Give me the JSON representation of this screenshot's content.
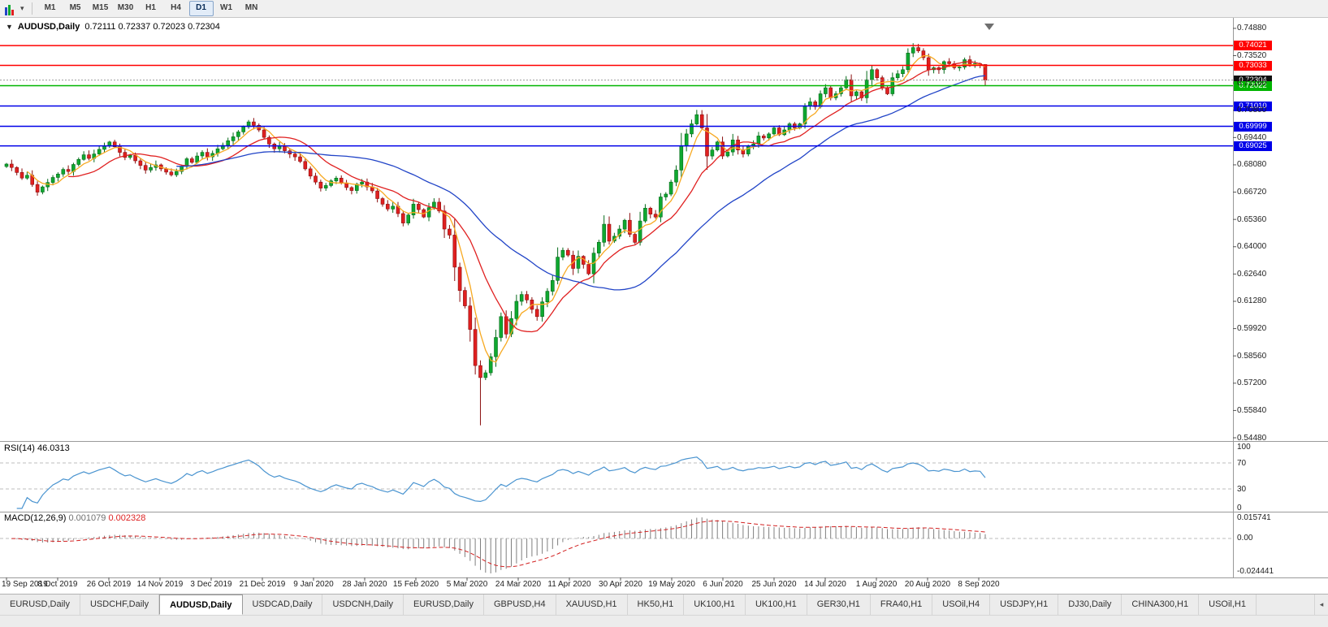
{
  "window": {
    "title_symbol": "AUDUSD,Daily",
    "title_ohlc": "0.72111 0.72337 0.72023 0.72304"
  },
  "toolbar": {
    "timeframes": [
      {
        "label": "M1",
        "active": false
      },
      {
        "label": "M5",
        "active": false
      },
      {
        "label": "M15",
        "active": false
      },
      {
        "label": "M30",
        "active": false
      },
      {
        "label": "H1",
        "active": false
      },
      {
        "label": "H4",
        "active": false
      },
      {
        "label": "D1",
        "active": true
      },
      {
        "label": "W1",
        "active": false
      },
      {
        "label": "MN",
        "active": false
      }
    ]
  },
  "chart_data": {
    "type": "candlestick",
    "symbol": "AUDUSD",
    "period": "Daily",
    "ohlc_display": {
      "open": "0.72111",
      "high": "0.72337",
      "low": "0.72023",
      "close": "0.72304"
    },
    "price_plot_range": [
      0.544,
      0.7516
    ],
    "y_axis_labels": [
      "0.74880",
      "0.73520",
      "0.72160",
      "0.70800",
      "0.69440",
      "0.68080",
      "0.66720",
      "0.65360",
      "0.64000",
      "0.62640",
      "0.61280",
      "0.59920",
      "0.58560",
      "0.57200",
      "0.55840",
      "0.54480"
    ],
    "x_ticks": [
      "19 Sep 2019",
      "8 Oct 2019",
      "26 Oct 2019",
      "14 Nov 2019",
      "3 Dec 2019",
      "21 Dec 2019",
      "9 Jan 2020",
      "28 Jan 2020",
      "15 Feb 2020",
      "5 Mar 2020",
      "24 Mar 2020",
      "11 Apr 2020",
      "30 Apr 2020",
      "19 May 2020",
      "6 Jun 2020",
      "25 Jun 2020",
      "14 Jul 2020",
      "1 Aug 2020",
      "20 Aug 2020",
      "8 Sep 2020"
    ],
    "closes": [
      0.6812,
      0.6795,
      0.677,
      0.6742,
      0.6756,
      0.671,
      0.6672,
      0.6698,
      0.672,
      0.6745,
      0.6762,
      0.6785,
      0.6775,
      0.681,
      0.6835,
      0.6858,
      0.684,
      0.6862,
      0.6885,
      0.6902,
      0.6922,
      0.6898,
      0.687,
      0.6845,
      0.6855,
      0.6828,
      0.6805,
      0.6782,
      0.6795,
      0.6808,
      0.6788,
      0.6772,
      0.6758,
      0.6775,
      0.68,
      0.6838,
      0.682,
      0.6852,
      0.687,
      0.6848,
      0.6865,
      0.6888,
      0.6905,
      0.6928,
      0.6948,
      0.6972,
      0.6998,
      0.7022,
      0.7005,
      0.6982,
      0.6945,
      0.6912,
      0.6888,
      0.6902,
      0.6878,
      0.6862,
      0.6848,
      0.6825,
      0.6788,
      0.6752,
      0.6722,
      0.6692,
      0.6705,
      0.6728,
      0.6742,
      0.6718,
      0.6695,
      0.668,
      0.6712,
      0.6722,
      0.6698,
      0.6678,
      0.664,
      0.6612,
      0.6588,
      0.6602,
      0.6565,
      0.6518,
      0.6558,
      0.6612,
      0.6585,
      0.6548,
      0.6595,
      0.6622,
      0.6578,
      0.6488,
      0.6458,
      0.6298,
      0.6182,
      0.6105,
      0.5988,
      0.5808,
      0.5748,
      0.5772,
      0.5852,
      0.5948,
      0.6052,
      0.5965,
      0.6042,
      0.6128,
      0.6162,
      0.6135,
      0.6088,
      0.6052,
      0.6125,
      0.6178,
      0.6232,
      0.6348,
      0.6382,
      0.6358,
      0.6292,
      0.6352,
      0.6312,
      0.6265,
      0.6368,
      0.6422,
      0.6512,
      0.6428,
      0.6452,
      0.6488,
      0.6532,
      0.6462,
      0.6422,
      0.6528,
      0.6592,
      0.6562,
      0.6548,
      0.6648,
      0.6662,
      0.6722,
      0.6782,
      0.6902,
      0.6962,
      0.7012,
      0.7058,
      0.6992,
      0.6852,
      0.6882,
      0.6922,
      0.6852,
      0.6872,
      0.6932,
      0.6882,
      0.6862,
      0.6902,
      0.6912,
      0.6952,
      0.6942,
      0.6962,
      0.6992,
      0.6958,
      0.6982,
      0.7012,
      0.6992,
      0.7012,
      0.7102,
      0.7122,
      0.7098,
      0.7162,
      0.7192,
      0.7142,
      0.7162,
      0.7192,
      0.7232,
      0.7152,
      0.7172,
      0.7142,
      0.7232,
      0.7282,
      0.7242,
      0.7192,
      0.7162,
      0.7242,
      0.7262,
      0.7282,
      0.7365,
      0.7392,
      0.7376,
      0.7342,
      0.7282,
      0.7292,
      0.7282,
      0.7322,
      0.7312,
      0.7292,
      0.7295,
      0.7332,
      0.7302,
      0.7312,
      0.7308,
      0.723
    ],
    "overrides": [
      {
        "index": 92,
        "low": 0.551
      },
      {
        "index": 176,
        "high": 0.7414
      },
      {
        "index": 190,
        "high": 0.72337,
        "low": 0.72023
      }
    ],
    "candle_up_color": "#0fa830",
    "candle_up_stroke": "#056a1a",
    "candle_down_color": "#e02020",
    "candle_down_stroke": "#8b0f0f",
    "moving_averages": [
      {
        "period": 5,
        "color": "#f7a921"
      },
      {
        "period": 13,
        "color": "#e02020"
      },
      {
        "period": 34,
        "color": "#2144c7"
      }
    ],
    "hlines": [
      {
        "price": 0.74021,
        "label": "0.74021",
        "color": "#ff0000"
      },
      {
        "price": 0.73033,
        "label": "0.73033",
        "color": "#ff0000"
      },
      {
        "price": 0.72304,
        "label": "0.72304",
        "color": "#111111",
        "style": "bid"
      },
      {
        "price": 0.72022,
        "label": "0.72022",
        "color": "#00b400"
      },
      {
        "price": 0.7101,
        "label": "0.71010",
        "color": "#0000e8"
      },
      {
        "price": 0.69999,
        "label": "0.69999",
        "color": "#0000e8"
      },
      {
        "price": 0.69025,
        "label": "0.69025",
        "color": "#0000e8"
      }
    ],
    "rsi": {
      "name": "RSI(14)",
      "value": "46.0313",
      "period": 14,
      "color": "#4a94d0",
      "axis_labels": [
        "100",
        "70",
        "30",
        "0"
      ],
      "level_lines": [
        70,
        30
      ]
    },
    "macd": {
      "name": "MACD(12,26,9)",
      "value_main": "0.001079",
      "value_signal": "0.002328",
      "fast": 12,
      "slow": 26,
      "signal": 9,
      "hist_color": "#7f7f7f",
      "signal_color": "#d22020",
      "axis_labels": [
        "0.015741",
        "0.00",
        "-0.024441"
      ]
    }
  },
  "bottom_tabs": {
    "active_index": 2,
    "scroll_left_glyph": "◂",
    "items": [
      {
        "label": "EURUSD,Daily"
      },
      {
        "label": "USDCHF,Daily"
      },
      {
        "label": "AUDUSD,Daily"
      },
      {
        "label": "USDCAD,Daily"
      },
      {
        "label": "USDCNH,Daily"
      },
      {
        "label": "EURUSD,Daily"
      },
      {
        "label": "GBPUSD,H4"
      },
      {
        "label": "XAUUSD,H1"
      },
      {
        "label": "HK50,H1"
      },
      {
        "label": "UK100,H1"
      },
      {
        "label": "UK100,H1"
      },
      {
        "label": "GER30,H1"
      },
      {
        "label": "FRA40,H1"
      },
      {
        "label": "USOil,H4"
      },
      {
        "label": "USDJPY,H1"
      },
      {
        "label": "DJ30,Daily"
      },
      {
        "label": "CHINA300,H1"
      },
      {
        "label": "USOil,H1"
      }
    ]
  }
}
